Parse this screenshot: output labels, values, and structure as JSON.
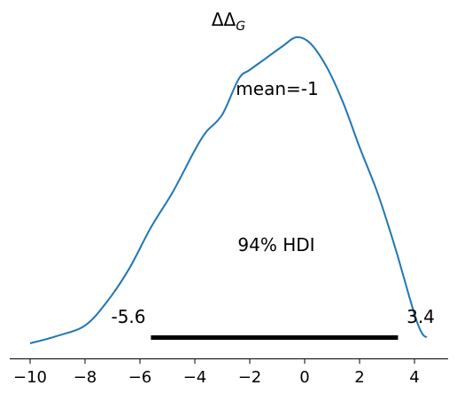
{
  "chart_data": {
    "type": "line",
    "title": "ΔΔ",
    "title_subscript": "G",
    "xlabel": "",
    "ylabel": "",
    "xlim": [
      -10.7,
      5.1
    ],
    "ylim": [
      0,
      1
    ],
    "xticks": [
      -10,
      -8,
      -6,
      -4,
      -2,
      0,
      2,
      4
    ],
    "xtick_labels": [
      "−10",
      "−8",
      "−6",
      "−4",
      "−2",
      "0",
      "2",
      "4"
    ],
    "y_axis_visible": false,
    "grid": false,
    "series": [
      {
        "name": "",
        "color": "#1f77b4",
        "x": [
          -10.0,
          -9.0,
          -8.0,
          -7.2,
          -6.4,
          -5.6,
          -4.8,
          -4.0,
          -3.6,
          -3.0,
          -2.4,
          -2.0,
          -1.4,
          -0.8,
          -0.3,
          0.2,
          0.8,
          1.4,
          2.0,
          2.6,
          3.0,
          3.4,
          3.8,
          4.1,
          4.3,
          4.45
        ],
        "y": [
          0.0,
          0.025,
          0.06,
          0.14,
          0.25,
          0.39,
          0.51,
          0.65,
          0.71,
          0.77,
          0.89,
          0.92,
          0.96,
          1.0,
          1.03,
          1.01,
          0.93,
          0.81,
          0.66,
          0.52,
          0.41,
          0.29,
          0.16,
          0.07,
          0.03,
          0.02
        ]
      }
    ],
    "annotations": {
      "mean_label": "mean=-1",
      "hdi_label": "94% HDI",
      "hdi_low_label": "-5.6",
      "hdi_high_label": "3.4",
      "hdi_low": -5.6,
      "hdi_high": 3.4
    },
    "hdi_line_color": "#000000"
  }
}
